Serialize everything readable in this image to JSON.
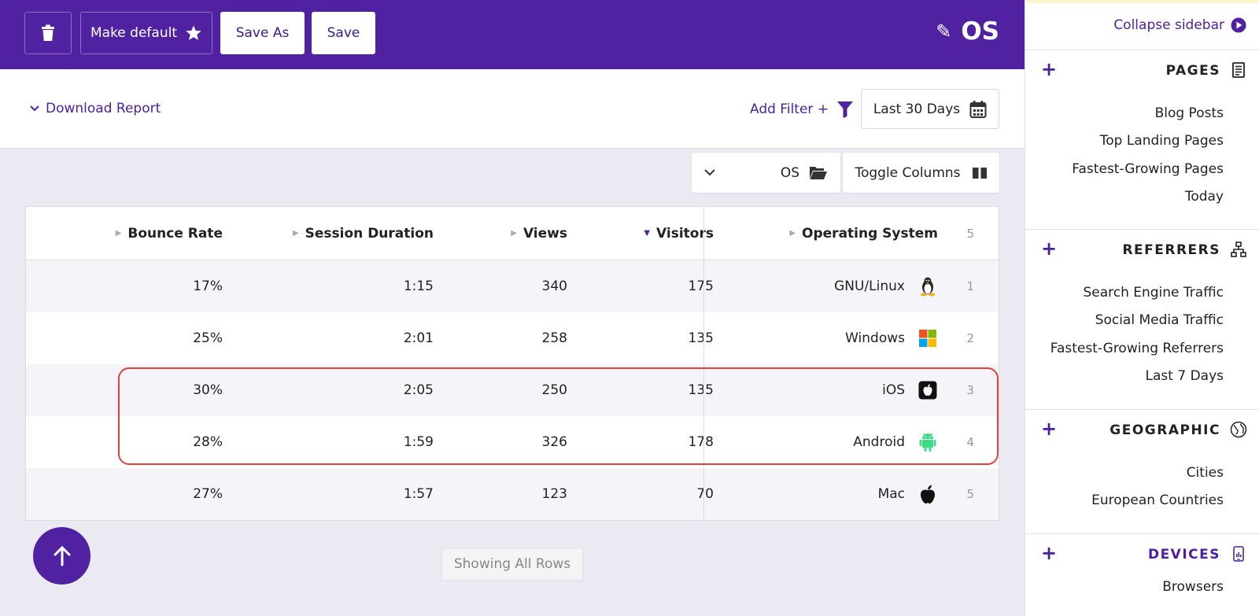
{
  "toolbar": {
    "trash_icon": "trash-icon",
    "make_default_label": "Make default",
    "save_as_label": "Save As",
    "save_label": "Save",
    "title": "OS",
    "brand_color": "#5022a1"
  },
  "filters": {
    "download_label": "Download Report",
    "add_filter_label": "Add Filter +",
    "date_range": "Last 30 Days"
  },
  "controls": {
    "group_by": "OS",
    "toggle_columns": "Toggle Columns"
  },
  "table": {
    "columns": [
      "Bounce Rate",
      "Session Duration",
      "Views",
      "Visitors",
      "Operating System"
    ],
    "sorted_column": "Visitors",
    "row_count": "5",
    "rows": [
      {
        "bounce": "17%",
        "session": "1:15",
        "views": "340",
        "visitors": "175",
        "os": "GNU/Linux",
        "icon": "linux-icon",
        "rank": "1"
      },
      {
        "bounce": "25%",
        "session": "2:01",
        "views": "258",
        "visitors": "135",
        "os": "Windows",
        "icon": "windows-icon",
        "rank": "2"
      },
      {
        "bounce": "30%",
        "session": "2:05",
        "views": "250",
        "visitors": "135",
        "os": "iOS",
        "icon": "ios-icon",
        "rank": "3"
      },
      {
        "bounce": "28%",
        "session": "1:59",
        "views": "326",
        "visitors": "178",
        "os": "Android",
        "icon": "android-icon",
        "rank": "4"
      },
      {
        "bounce": "27%",
        "session": "1:57",
        "views": "123",
        "visitors": "70",
        "os": "Mac",
        "icon": "apple-icon",
        "rank": "5"
      }
    ],
    "highlight_color": "#e0423e"
  },
  "footer": {
    "showing_all_rows": "Showing All Rows"
  },
  "sidebar": {
    "collapse_label": "Collapse sidebar",
    "sections": [
      {
        "title": "PAGES",
        "icon": "document-icon",
        "items": [
          "Blog Posts",
          "Top Landing Pages",
          "Fastest-Growing Pages",
          "Today"
        ]
      },
      {
        "title": "REFERRERS",
        "icon": "network-icon",
        "items": [
          "Search Engine Traffic",
          "Social Media Traffic",
          "Fastest-Growing Referrers",
          "Last 7 Days"
        ]
      },
      {
        "title": "GEOGRAPHIC",
        "icon": "globe-icon",
        "items": [
          "Cities",
          "European Countries"
        ]
      },
      {
        "title": "DEVICES",
        "icon": "phone-icon",
        "items": [
          "Browsers"
        ]
      }
    ]
  }
}
